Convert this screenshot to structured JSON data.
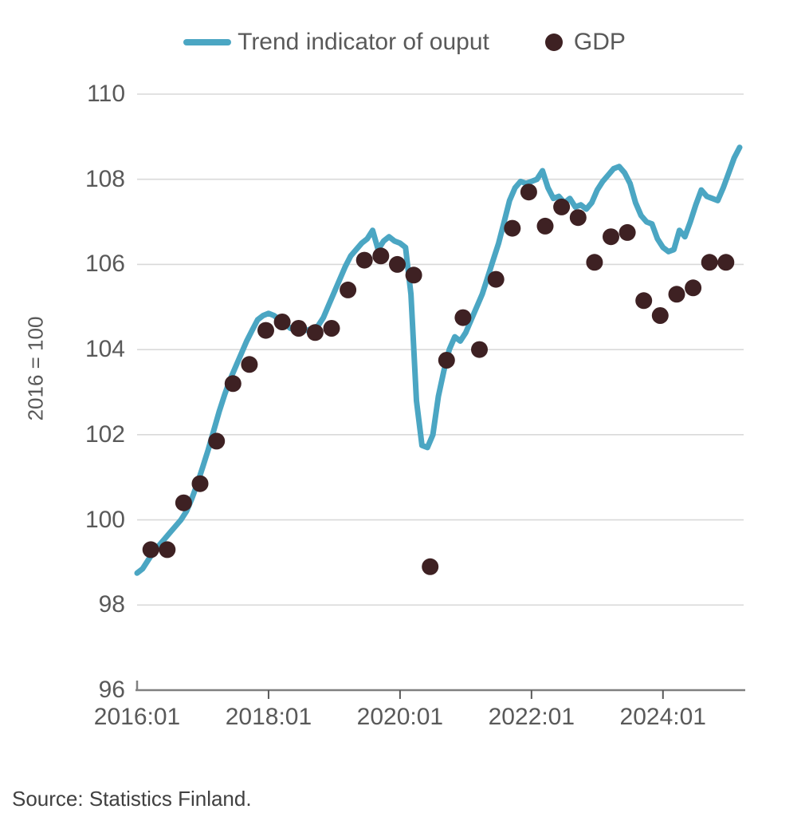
{
  "legend": {
    "line_label": "Trend indicator of ouput",
    "dot_label": "GDP"
  },
  "y_axis": {
    "title": "2016 = 100"
  },
  "source": "Source: Statistics Finland.",
  "colors": {
    "line": "#4ba6c3",
    "dot": "#3e2123",
    "grid": "#d9d9d9",
    "axis": "#808080",
    "tick": "#595959",
    "label_text": "#595959",
    "source_text": "#404040"
  },
  "chart_data": {
    "type": "line+scatter",
    "title": "",
    "ylabel": "2016 = 100",
    "ylim": [
      96,
      110
    ],
    "y_ticks": [
      96,
      98,
      100,
      102,
      104,
      106,
      108,
      110
    ],
    "x_tick_labels": [
      "2016:01",
      "2018:01",
      "2020:01",
      "2022:01",
      "2024:01"
    ],
    "x_tick_month_positions": [
      0,
      24,
      48,
      72,
      96
    ],
    "grid": "horizontal",
    "legend_position": "top",
    "series": [
      {
        "name": "Trend indicator of ouput",
        "type": "line",
        "frequency": "monthly",
        "start": "2016:01",
        "end": "2025:03",
        "values": [
          98.75,
          98.85,
          99.05,
          99.25,
          99.4,
          99.55,
          99.7,
          99.85,
          100.0,
          100.2,
          100.5,
          100.85,
          101.25,
          101.65,
          102.1,
          102.55,
          102.95,
          103.3,
          103.6,
          103.9,
          104.2,
          104.45,
          104.7,
          104.8,
          104.85,
          104.8,
          104.7,
          104.6,
          104.5,
          104.45,
          104.5,
          104.45,
          104.5,
          104.55,
          104.75,
          105.05,
          105.35,
          105.65,
          105.95,
          106.2,
          106.35,
          106.5,
          106.6,
          106.8,
          106.35,
          106.55,
          106.65,
          106.55,
          106.5,
          106.4,
          105.3,
          102.8,
          101.75,
          101.7,
          102.0,
          102.9,
          103.5,
          104.0,
          104.3,
          104.2,
          104.4,
          104.7,
          105.0,
          105.3,
          105.7,
          106.1,
          106.5,
          107.0,
          107.5,
          107.8,
          107.95,
          107.9,
          107.95,
          108.0,
          108.2,
          107.8,
          107.55,
          107.6,
          107.45,
          107.55,
          107.35,
          107.4,
          107.3,
          107.45,
          107.75,
          107.95,
          108.1,
          108.25,
          108.3,
          108.15,
          107.9,
          107.45,
          107.15,
          107.0,
          106.95,
          106.6,
          106.4,
          106.3,
          106.35,
          106.8,
          106.65,
          107.0,
          107.4,
          107.75,
          107.6,
          107.55,
          107.5,
          107.8,
          108.15,
          108.5,
          108.75
        ]
      },
      {
        "name": "GDP",
        "type": "scatter",
        "frequency": "quarterly",
        "start": "2016Q1",
        "end": "2024Q4",
        "values": [
          99.3,
          99.3,
          100.4,
          100.85,
          101.85,
          103.2,
          103.65,
          104.45,
          104.65,
          104.5,
          104.4,
          104.5,
          105.4,
          106.1,
          106.2,
          106.0,
          105.75,
          98.9,
          103.75,
          104.75,
          104.0,
          105.65,
          106.85,
          107.7,
          106.9,
          107.35,
          107.1,
          106.05,
          106.65,
          106.75,
          105.15,
          104.8,
          105.3,
          105.45,
          106.05,
          106.05
        ]
      }
    ]
  }
}
